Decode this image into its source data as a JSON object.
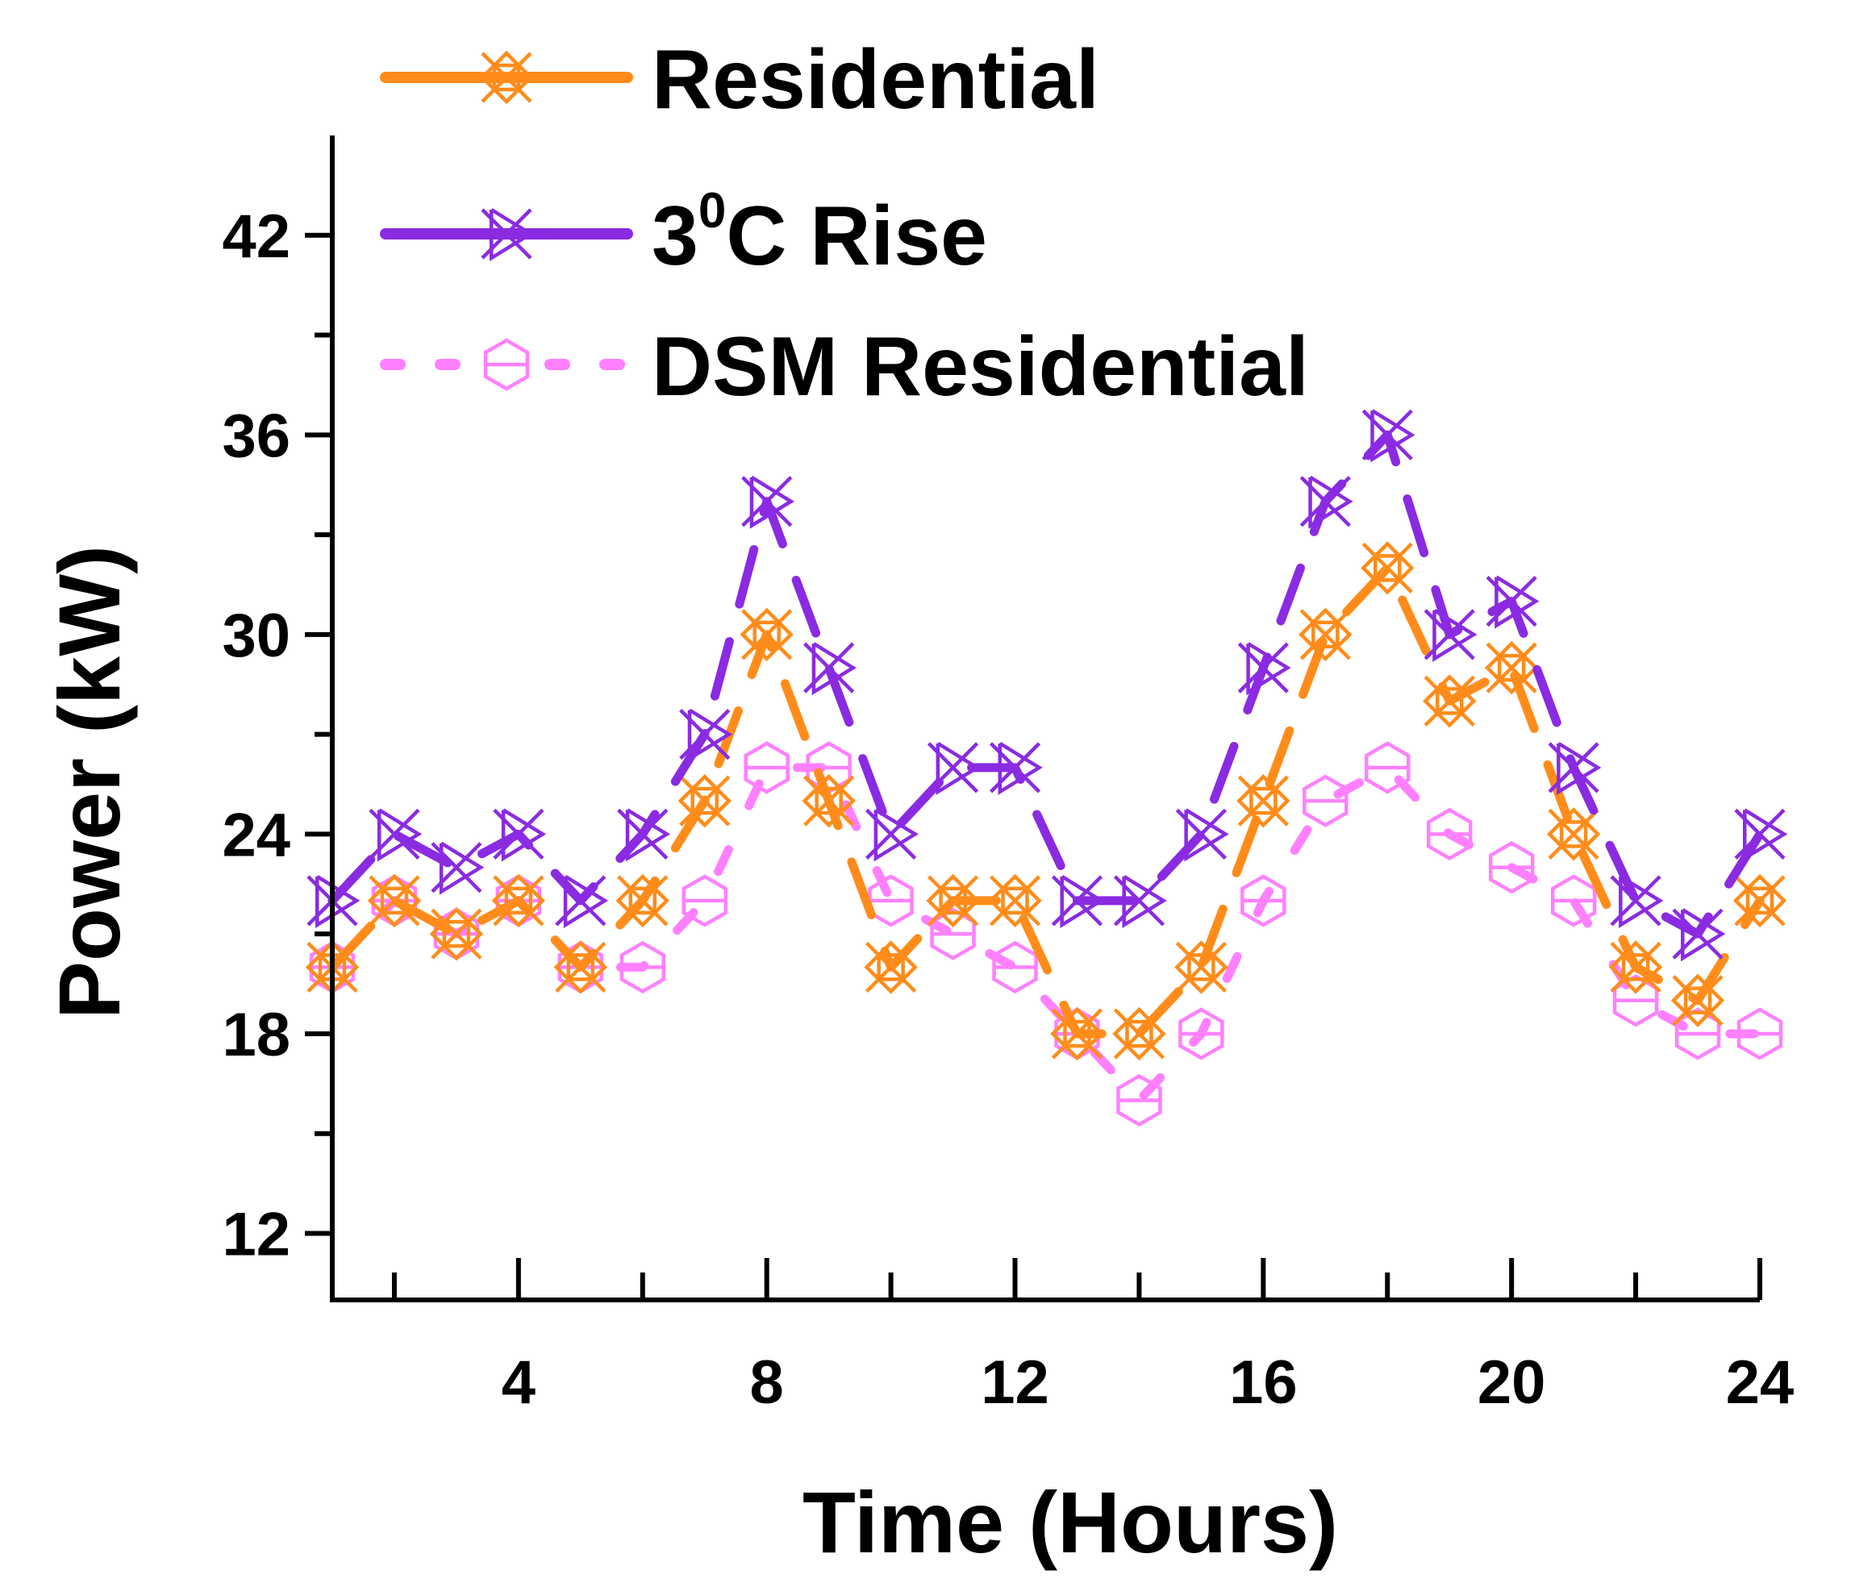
{
  "chart_data": {
    "type": "line",
    "title": "",
    "xlabel": "Time (Hours)",
    "ylabel": "Power (kW)",
    "xlim": [
      1,
      24
    ],
    "ylim": [
      10,
      45
    ],
    "xticks": [
      4,
      8,
      12,
      16,
      20,
      24
    ],
    "xtick_labels": [
      "4",
      "8",
      "12",
      "16",
      "20",
      "24"
    ],
    "yticks": [
      12,
      18,
      24,
      30,
      36,
      42
    ],
    "ytick_labels": [
      "12",
      "18",
      "24",
      "30",
      "36",
      "42"
    ],
    "grid": false,
    "legend_position": "top-left",
    "x": [
      1,
      2,
      3,
      4,
      5,
      6,
      7,
      8,
      9,
      10,
      11,
      12,
      13,
      14,
      15,
      16,
      17,
      18,
      19,
      20,
      21,
      22,
      23,
      24
    ],
    "series": [
      {
        "name": "Residential",
        "color": "#ff8c1a",
        "marker": "crossed-x",
        "line_style": "dash",
        "values": [
          20,
          22,
          21,
          22,
          20,
          22,
          25,
          30,
          25,
          20,
          22,
          22,
          18,
          18,
          20,
          25,
          30,
          32,
          28,
          29,
          24,
          20,
          19,
          22
        ]
      },
      {
        "name": "3⁰C Rise",
        "legend_base": "3",
        "legend_sup": "0",
        "legend_rest": "C Rise",
        "color": "#8a2be2",
        "marker": "bowtie-x",
        "line_style": "dash",
        "values": [
          22,
          24,
          23,
          24,
          22,
          24,
          27,
          34,
          29,
          24,
          26,
          26,
          22,
          22,
          24,
          29,
          34,
          36,
          30,
          31,
          26,
          22,
          21,
          24
        ]
      },
      {
        "name": "DSM Residential",
        "color": "#ff80ff",
        "marker": "hexagon",
        "line_style": "dash-short",
        "values": [
          20,
          22,
          21,
          22,
          20,
          20,
          22,
          26,
          26,
          22,
          21,
          20,
          18,
          16,
          18,
          22,
          25,
          26,
          24,
          23,
          22,
          19,
          18,
          18
        ]
      }
    ]
  }
}
